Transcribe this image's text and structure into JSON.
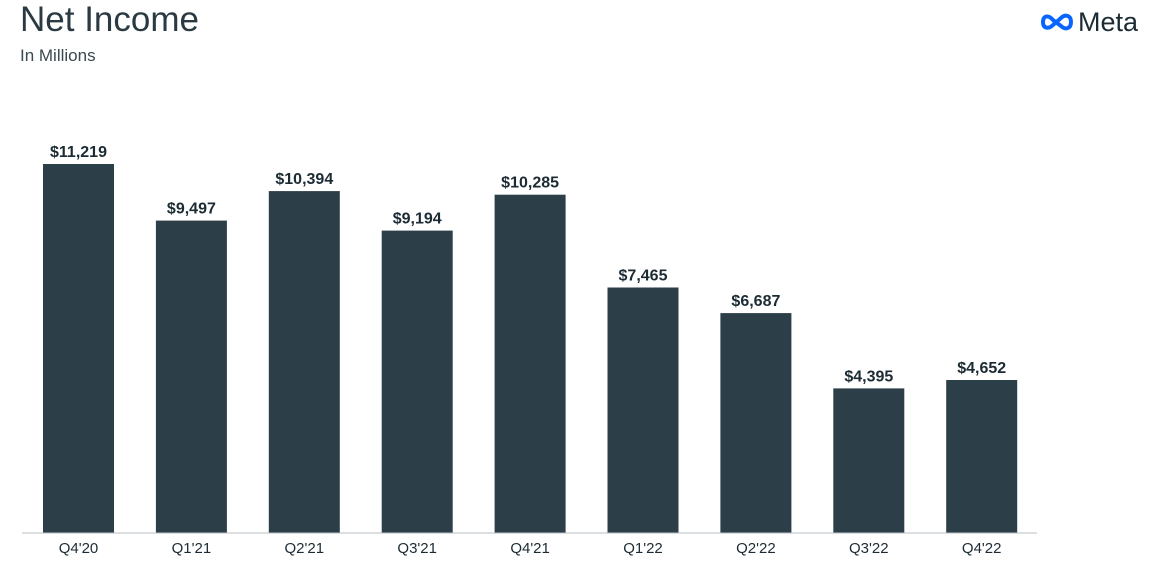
{
  "header": {
    "title": "Net Income",
    "subtitle": "In Millions",
    "brand": "Meta",
    "brand_icon": "meta-infinity-logo-icon",
    "brand_color": "#0866ff"
  },
  "chart_data": {
    "type": "bar",
    "title": "Net Income",
    "subtitle": "In Millions",
    "categories": [
      "Q4'20",
      "Q1'21",
      "Q2'21",
      "Q3'21",
      "Q4'21",
      "Q1'22",
      "Q2'22",
      "Q3'22",
      "Q4'22"
    ],
    "values": [
      11219,
      9497,
      10394,
      9194,
      10285,
      7465,
      6687,
      4395,
      4652
    ],
    "data_labels": [
      "$11,219",
      "$9,497",
      "$10,394",
      "$9,194",
      "$10,285",
      "$7,465",
      "$6,687",
      "$4,395",
      "$4,652"
    ],
    "xlabel": "",
    "ylabel": "",
    "ylim": [
      0,
      11219
    ],
    "grid": false,
    "bar_color": "#2c3e48"
  }
}
